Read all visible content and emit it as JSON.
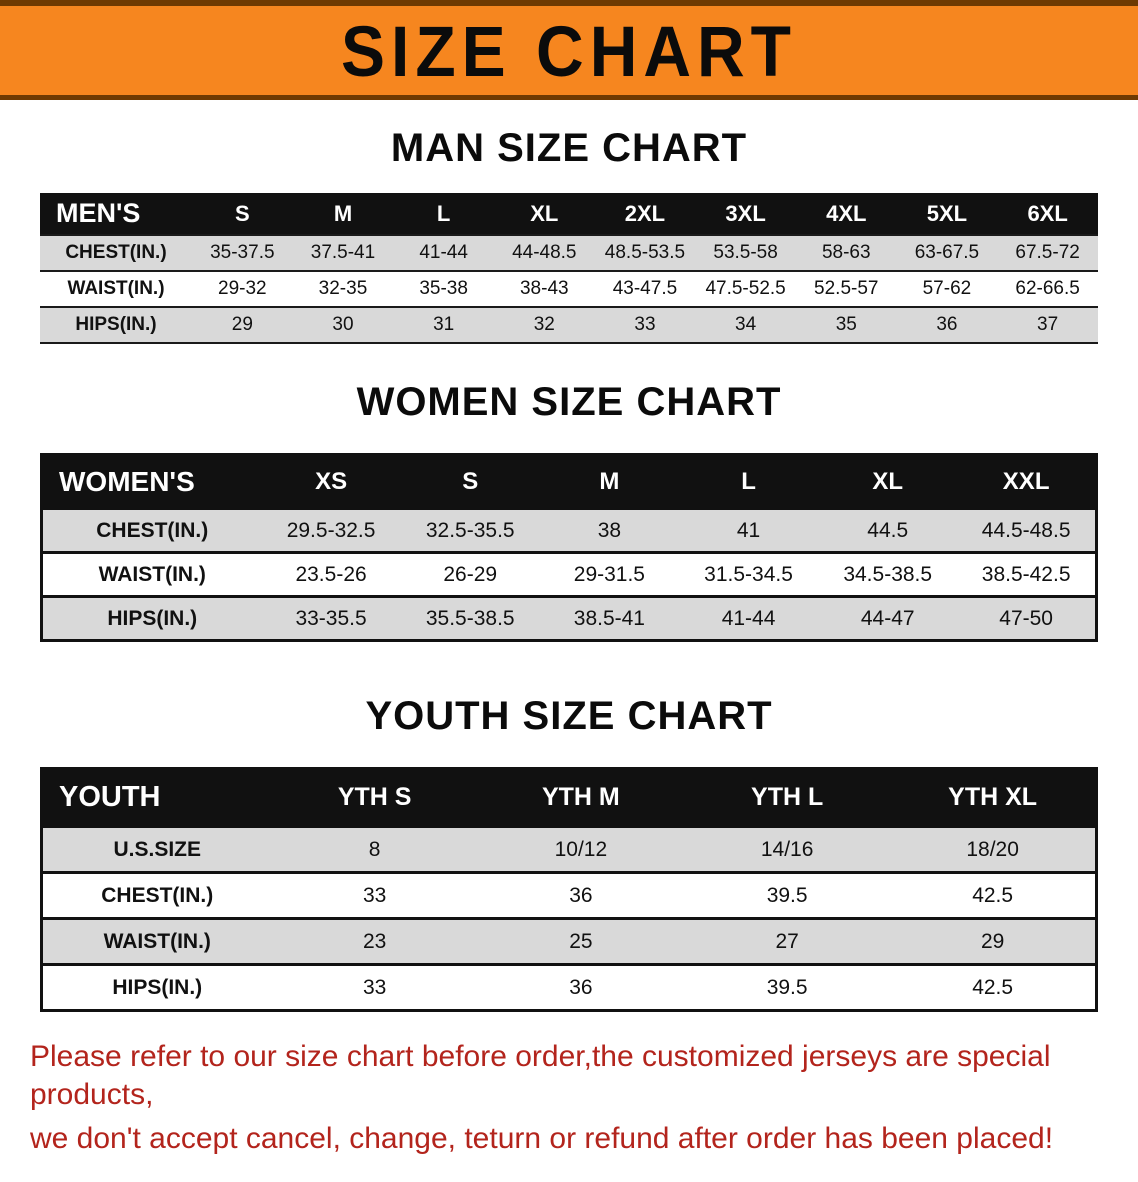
{
  "colors": {
    "banner_orange": "#f6861f",
    "banner_edge": "#6e3a02",
    "header_black": "#111111",
    "row_gray": "#d9d9d9",
    "footer_red": "#b3241c"
  },
  "banner": {
    "title": "SIZE CHART"
  },
  "sections": [
    {
      "id": "men",
      "heading": "MAN SIZE CHART",
      "header": [
        "MEN'S",
        "S",
        "M",
        "L",
        "XL",
        "2XL",
        "3XL",
        "4XL",
        "5XL",
        "6XL"
      ],
      "rows": [
        {
          "label": "CHEST(IN.)",
          "values": [
            "35-37.5",
            "37.5-41",
            "41-44",
            "44-48.5",
            "48.5-53.5",
            "53.5-58",
            "58-63",
            "63-67.5",
            "67.5-72"
          ]
        },
        {
          "label": "WAIST(IN.)",
          "values": [
            "29-32",
            "32-35",
            "35-38",
            "38-43",
            "43-47.5",
            "47.5-52.5",
            "52.5-57",
            "57-62",
            "62-66.5"
          ]
        },
        {
          "label": "HIPS(IN.)",
          "values": [
            "29",
            "30",
            "31",
            "32",
            "33",
            "34",
            "35",
            "36",
            "37"
          ]
        }
      ]
    },
    {
      "id": "women",
      "heading": "WOMEN SIZE CHART",
      "header": [
        "WOMEN'S",
        "XS",
        "S",
        "M",
        "L",
        "XL",
        "XXL"
      ],
      "rows": [
        {
          "label": "CHEST(IN.)",
          "values": [
            "29.5-32.5",
            "32.5-35.5",
            "38",
            "41",
            "44.5",
            "44.5-48.5"
          ]
        },
        {
          "label": "WAIST(IN.)",
          "values": [
            "23.5-26",
            "26-29",
            "29-31.5",
            "31.5-34.5",
            "34.5-38.5",
            "38.5-42.5"
          ]
        },
        {
          "label": "HIPS(IN.)",
          "values": [
            "33-35.5",
            "35.5-38.5",
            "38.5-41",
            "41-44",
            "44-47",
            "47-50"
          ]
        }
      ]
    },
    {
      "id": "youth",
      "heading": "YOUTH SIZE CHART",
      "header": [
        "YOUTH",
        "YTH S",
        "YTH M",
        "YTH L",
        "YTH XL"
      ],
      "rows": [
        {
          "label": "U.S.SIZE",
          "values": [
            "8",
            "10/12",
            "14/16",
            "18/20"
          ]
        },
        {
          "label": "CHEST(IN.)",
          "values": [
            "33",
            "36",
            "39.5",
            "42.5"
          ]
        },
        {
          "label": "WAIST(IN.)",
          "values": [
            "23",
            "25",
            "27",
            "29"
          ]
        },
        {
          "label": "HIPS(IN.)",
          "values": [
            "33",
            "36",
            "39.5",
            "42.5"
          ]
        }
      ]
    }
  ],
  "footer": {
    "line1": "Please refer to our size chart before order,the customized jerseys are special products,",
    "line2": "we don't accept cancel, change, teturn or refund after order has been placed!"
  }
}
